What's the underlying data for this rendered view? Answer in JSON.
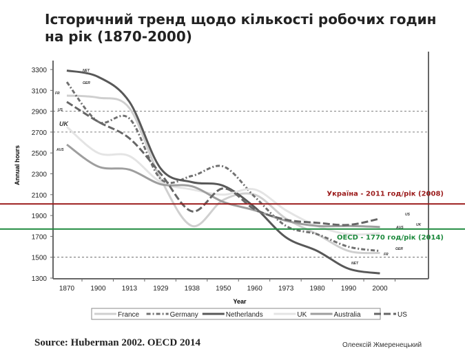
{
  "title": "Історичний тренд щодо кількості робочих годин на рік (1870-2000)",
  "source": "Source: Huberman 2002. OECD 2014",
  "author": "Олеексій Жмеренецький",
  "chart_data": {
    "type": "line",
    "xlabel": "Year",
    "ylabel": "Annual hours",
    "categories": [
      "1870",
      "1900",
      "1913",
      "1929",
      "1938",
      "1950",
      "1960",
      "1973",
      "1980",
      "1990",
      "2000"
    ],
    "yticks": [
      1300,
      1500,
      1700,
      1900,
      2100,
      2300,
      2500,
      2700,
      2900,
      3100,
      3300
    ],
    "ylim": [
      1300,
      3300
    ],
    "dashed_gridlines": [
      2900,
      2700,
      1500
    ],
    "legend_position": "bottom",
    "series": [
      {
        "name": "France",
        "label": "FR",
        "color": "#cfcfcf",
        "style": "solid",
        "values": [
          3050,
          3030,
          2930,
          2250,
          1800,
          2050,
          2100,
          1870,
          1720,
          1560,
          1540
        ]
      },
      {
        "name": "Germany",
        "label": "GER",
        "color": "#707070",
        "style": "dotdash",
        "values": [
          3180,
          2800,
          2830,
          2250,
          2280,
          2370,
          2080,
          1800,
          1720,
          1600,
          1560
        ]
      },
      {
        "name": "Netherlands",
        "label": "NET",
        "color": "#585858",
        "style": "solid",
        "values": [
          3290,
          3230,
          2990,
          2350,
          2220,
          2185,
          1980,
          1690,
          1560,
          1390,
          1345
        ]
      },
      {
        "name": "UK",
        "label": "UK",
        "color": "#e4e4e4",
        "style": "solid",
        "values": [
          2750,
          2500,
          2470,
          2220,
          2150,
          2100,
          2150,
          1950,
          1800,
          1720,
          1730
        ]
      },
      {
        "name": "Australia",
        "label": "AUS",
        "color": "#9e9e9e",
        "style": "solid",
        "values": [
          2580,
          2370,
          2340,
          2200,
          2180,
          2030,
          1950,
          1850,
          1800,
          1800,
          1790
        ]
      },
      {
        "name": "US",
        "label": "US",
        "color": "#666666",
        "style": "longdash",
        "values": [
          2990,
          2800,
          2640,
          2300,
          1940,
          2160,
          1960,
          1860,
          1830,
          1810,
          1870
        ]
      }
    ],
    "reference_lines": [
      {
        "value": 2011,
        "label": "Україна - 2011 год/рік (2008)",
        "color": "#9b1b1b"
      },
      {
        "value": 1770,
        "label": "OECD - 1770 год/рік (2014)",
        "color": "#1e8a3e"
      }
    ]
  }
}
